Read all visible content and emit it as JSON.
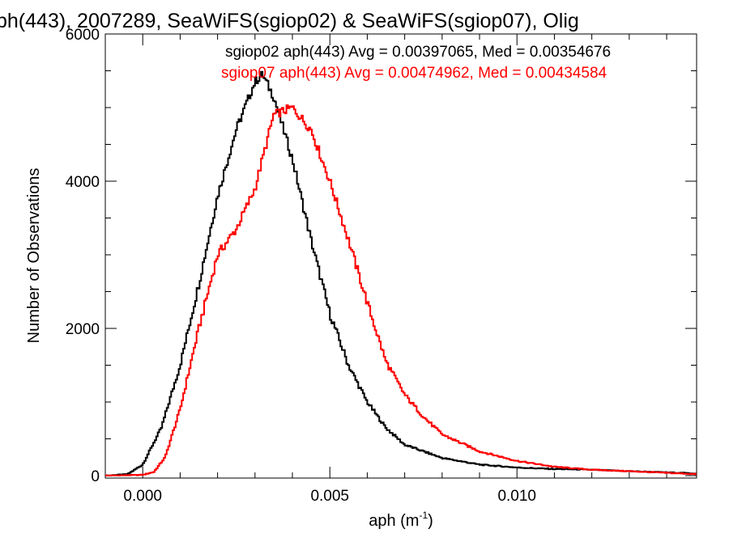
{
  "chart_data": {
    "type": "line",
    "title": "ph(443), 2007289, SeaWiFS(sgiop02) & SeaWiFS(sgiop07), Olig",
    "xlabel": "aph (m",
    "xlabel_sup": "-1",
    "xlabel_suffix": ")",
    "ylabel": "Number of Observations",
    "xlim": [
      -0.001,
      0.0148
    ],
    "ylim": [
      0,
      6000
    ],
    "x_ticks": [
      0.0,
      0.005,
      0.01
    ],
    "x_tick_labels": [
      "0.000",
      "0.005",
      "0.010"
    ],
    "y_ticks": [
      0,
      2000,
      4000,
      6000
    ],
    "y_tick_labels": [
      "0",
      "2000",
      "4000",
      "6000"
    ],
    "grid": false,
    "legend_position": "top-right",
    "series": [
      {
        "name": "sgiop02 aph(443) Avg = 0.00397065, Med = 0.00354676",
        "color": "#000000",
        "x": [
          -0.001,
          -0.0004,
          0.0,
          0.0005,
          0.001,
          0.0015,
          0.002,
          0.0025,
          0.003,
          0.0032,
          0.0035,
          0.004,
          0.0045,
          0.005,
          0.0055,
          0.006,
          0.0065,
          0.007,
          0.008,
          0.009,
          0.01,
          0.011,
          0.012,
          0.013,
          0.0148
        ],
        "y": [
          0,
          20,
          150,
          650,
          1500,
          2600,
          3800,
          4700,
          5350,
          5450,
          5150,
          4300,
          3200,
          2200,
          1500,
          1000,
          650,
          420,
          240,
          150,
          110,
          90,
          80,
          60,
          30
        ]
      },
      {
        "name": "sgiop07 aph(443) Avg = 0.00474962, Med = 0.00434584",
        "color": "#ff0000",
        "x": [
          -0.001,
          0.0,
          0.0003,
          0.0006,
          0.001,
          0.0015,
          0.002,
          0.0025,
          0.003,
          0.0035,
          0.004,
          0.0045,
          0.005,
          0.0055,
          0.006,
          0.0065,
          0.007,
          0.0075,
          0.008,
          0.009,
          0.01,
          0.011,
          0.012,
          0.013,
          0.0148
        ],
        "y": [
          0,
          10,
          50,
          250,
          900,
          2000,
          3000,
          3350,
          3900,
          4900,
          5000,
          4700,
          4000,
          3200,
          2350,
          1550,
          1100,
          800,
          560,
          330,
          200,
          120,
          80,
          60,
          20
        ]
      }
    ]
  }
}
